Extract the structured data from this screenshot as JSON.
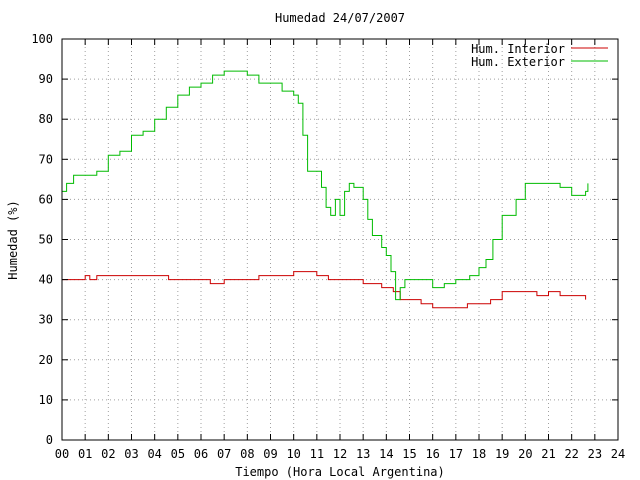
{
  "chart_data": {
    "type": "line",
    "title": "Humedad 24/07/2007",
    "xlabel": "Tiempo (Hora Local Argentina)",
    "ylabel": "Humedad (%)",
    "xlim": [
      0,
      24
    ],
    "ylim": [
      0,
      100
    ],
    "x_ticks": [
      "00",
      "01",
      "02",
      "03",
      "04",
      "05",
      "06",
      "07",
      "08",
      "09",
      "10",
      "11",
      "12",
      "13",
      "14",
      "15",
      "16",
      "17",
      "18",
      "19",
      "20",
      "21",
      "22",
      "23",
      "24"
    ],
    "y_ticks": [
      0,
      10,
      20,
      30,
      40,
      50,
      60,
      70,
      80,
      90,
      100
    ],
    "grid": true,
    "legend_position": "top-right",
    "series": [
      {
        "name": "Hum. Interior",
        "color": "#cc0000",
        "x": [
          0,
          0.7,
          1.0,
          1.2,
          1.5,
          2.0,
          3.0,
          4.0,
          4.6,
          5.0,
          6.0,
          6.4,
          7.0,
          8.0,
          8.5,
          9.0,
          9.6,
          10.0,
          10.5,
          11.0,
          11.5,
          12.0,
          13.0,
          13.8,
          14.3,
          14.6,
          15.0,
          15.5,
          16.0,
          16.5,
          17.0,
          17.5,
          18.0,
          18.5,
          19.0,
          19.5,
          20.0,
          20.5,
          21.0,
          21.5,
          22.0,
          22.3,
          22.6
        ],
        "y": [
          40,
          40,
          41,
          40,
          41,
          41,
          41,
          41,
          40,
          40,
          40,
          39,
          40,
          40,
          41,
          41,
          41,
          42,
          42,
          41,
          40,
          40,
          39,
          38,
          37,
          35,
          35,
          34,
          33,
          33,
          33,
          34,
          34,
          35,
          37,
          37,
          37,
          36,
          37,
          36,
          36,
          36,
          35
        ]
      },
      {
        "name": "Hum. Exterior",
        "color": "#00bb00",
        "x": [
          0,
          0.2,
          0.5,
          1.0,
          1.5,
          2.0,
          2.5,
          3.0,
          3.5,
          4.0,
          4.5,
          5.0,
          5.5,
          6.0,
          6.5,
          7.0,
          7.5,
          8.0,
          8.5,
          9.0,
          9.5,
          10.0,
          10.2,
          10.4,
          10.6,
          10.8,
          11.0,
          11.2,
          11.4,
          11.6,
          11.8,
          12.0,
          12.2,
          12.4,
          12.6,
          12.8,
          13.0,
          13.2,
          13.4,
          13.6,
          13.8,
          14.0,
          14.2,
          14.4,
          14.6,
          14.8,
          15.0,
          15.5,
          16.0,
          16.5,
          17.0,
          17.3,
          17.6,
          18.0,
          18.3,
          18.6,
          19.0,
          19.3,
          19.6,
          20.0,
          20.5,
          21.0,
          21.5,
          22.0,
          22.3,
          22.6,
          22.7
        ],
        "y": [
          62,
          64,
          66,
          66,
          67,
          71,
          72,
          76,
          77,
          80,
          83,
          86,
          88,
          89,
          91,
          92,
          92,
          91,
          89,
          89,
          87,
          86,
          84,
          76,
          67,
          67,
          67,
          63,
          58,
          56,
          60,
          56,
          62,
          64,
          63,
          63,
          60,
          55,
          51,
          51,
          48,
          46,
          42,
          35,
          38,
          40,
          40,
          40,
          38,
          39,
          40,
          40,
          41,
          43,
          45,
          50,
          56,
          56,
          60,
          64,
          64,
          64,
          63,
          61,
          61,
          62,
          64
        ]
      }
    ]
  }
}
